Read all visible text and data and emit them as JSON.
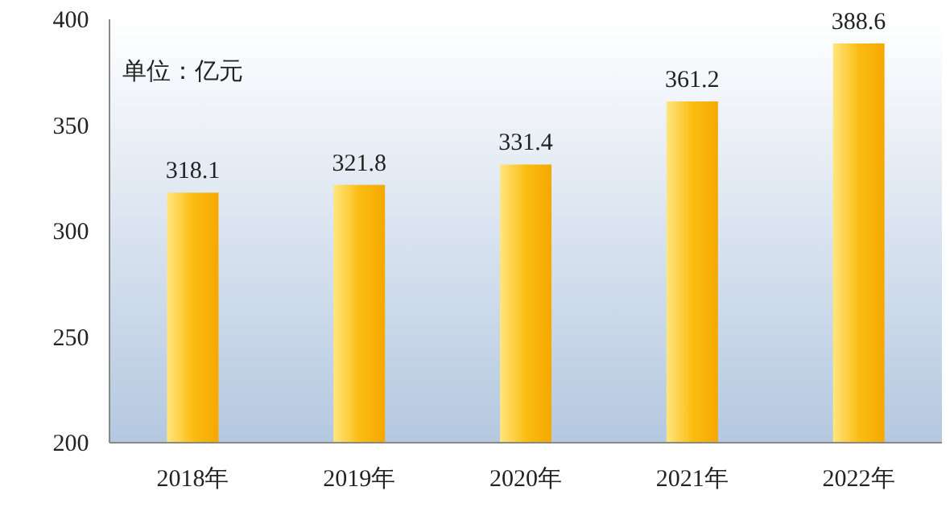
{
  "chart_data": {
    "type": "bar",
    "categories": [
      "2018年",
      "2019年",
      "2020年",
      "2021年",
      "2022年"
    ],
    "values": [
      318.1,
      321.8,
      331.4,
      361.2,
      388.6
    ],
    "color": "#fbbd12",
    "ylim": [
      200,
      400
    ],
    "yticks": [
      200,
      250,
      300,
      350,
      400
    ],
    "data_labels": true,
    "annotations": [
      "单位：亿元"
    ]
  }
}
